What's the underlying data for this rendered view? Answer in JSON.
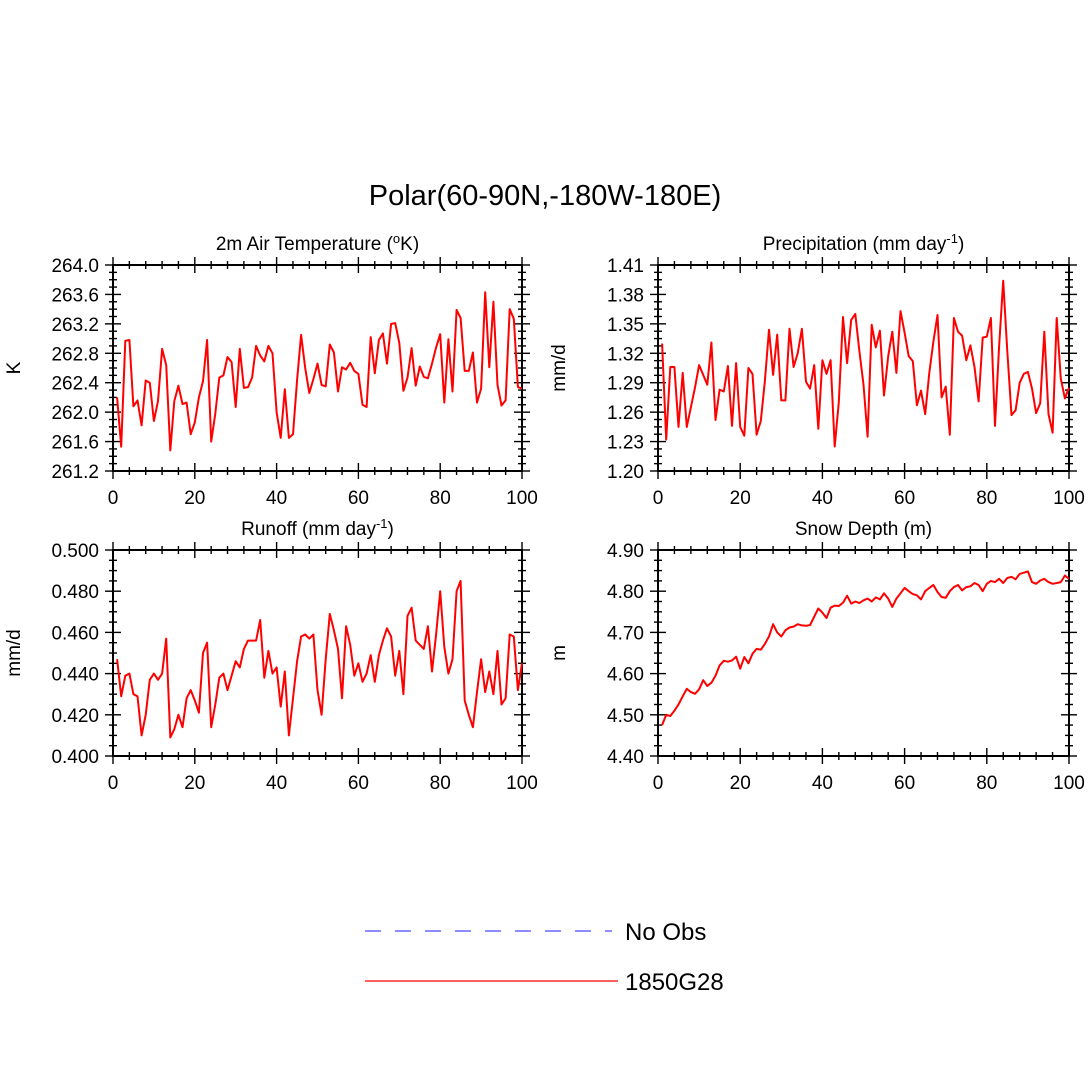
{
  "title": "Polar(60-90N,-180W-180E)",
  "legend": {
    "entries": [
      {
        "label": "No Obs",
        "color": "#6666ff",
        "style": "dashed"
      },
      {
        "label": "1850G28",
        "color": "#ff0000",
        "style": "solid"
      }
    ]
  },
  "colors": {
    "series": "#ff0000",
    "obs": "#6666ff",
    "axis": "#000000"
  },
  "chart_data": [
    {
      "type": "line",
      "title": "2m Air Temperature (",
      "title_sup": "o",
      "title_tail": "K)",
      "xlabel": "",
      "ylabel": "K",
      "xlim": [
        0,
        100
      ],
      "ylim": [
        261.2,
        264.0
      ],
      "xticks": [
        0,
        20,
        40,
        60,
        80,
        100
      ],
      "xtick_labels": [
        "0",
        "20",
        "40",
        "60",
        "80",
        "100"
      ],
      "yticks": [
        261.2,
        261.6,
        262.0,
        262.4,
        262.8,
        263.2,
        263.6,
        264.0
      ],
      "ytick_labels": [
        "261.2",
        "261.6",
        "262.0",
        "262.4",
        "262.8",
        "263.2",
        "263.6",
        "264.0"
      ],
      "series": [
        {
          "name": "1850G28",
          "x_start": 1,
          "values": [
            262.2,
            261.53,
            262.97,
            262.98,
            262.08,
            262.16,
            261.82,
            262.43,
            262.4,
            261.88,
            262.15,
            262.86,
            262.64,
            261.48,
            262.15,
            262.36,
            262.11,
            262.13,
            261.7,
            261.86,
            262.2,
            262.42,
            262.98,
            261.6,
            261.98,
            262.47,
            262.5,
            262.75,
            262.68,
            262.07,
            262.86,
            262.33,
            262.34,
            262.47,
            262.9,
            262.77,
            262.69,
            262.9,
            262.8,
            262.0,
            261.65,
            262.31,
            261.65,
            261.7,
            262.44,
            263.05,
            262.6,
            262.26,
            262.45,
            262.66,
            262.37,
            262.35,
            262.92,
            262.81,
            262.28,
            262.61,
            262.58,
            262.67,
            262.56,
            262.52,
            262.1,
            262.07,
            263.02,
            262.53,
            262.98,
            263.07,
            262.66,
            263.2,
            263.21,
            262.94,
            262.29,
            262.47,
            262.87,
            262.36,
            262.62,
            262.48,
            262.46,
            262.66,
            262.88,
            263.06,
            262.13,
            262.99,
            262.28,
            263.39,
            263.28,
            262.56,
            262.56,
            262.81,
            262.13,
            262.32,
            263.63,
            262.61,
            263.5,
            262.37,
            262.09,
            262.16,
            263.4,
            263.27,
            262.34,
            262.32
          ]
        }
      ]
    },
    {
      "type": "line",
      "title": "Precipitation (mm day",
      "title_sup": "-1",
      "title_tail": ")",
      "xlabel": "",
      "ylabel": "mm/d",
      "xlim": [
        0,
        100
      ],
      "ylim": [
        1.2,
        1.41
      ],
      "xticks": [
        0,
        20,
        40,
        60,
        80,
        100
      ],
      "xtick_labels": [
        "0",
        "20",
        "40",
        "60",
        "80",
        "100"
      ],
      "yticks": [
        1.2,
        1.23,
        1.26,
        1.29,
        1.32,
        1.35,
        1.38,
        1.41
      ],
      "ytick_labels": [
        "1.20",
        "1.23",
        "1.26",
        "1.29",
        "1.32",
        "1.35",
        "1.38",
        "1.41"
      ],
      "series": [
        {
          "name": "1850G28",
          "x_start": 1,
          "values": [
            1.33,
            1.232,
            1.306,
            1.306,
            1.245,
            1.3,
            1.245,
            1.265,
            1.285,
            1.308,
            1.298,
            1.288,
            1.331,
            1.252,
            1.283,
            1.281,
            1.307,
            1.246,
            1.31,
            1.245,
            1.236,
            1.305,
            1.299,
            1.237,
            1.251,
            1.292,
            1.344,
            1.298,
            1.339,
            1.272,
            1.272,
            1.345,
            1.306,
            1.32,
            1.345,
            1.291,
            1.284,
            1.308,
            1.243,
            1.313,
            1.299,
            1.313,
            1.225,
            1.27,
            1.357,
            1.31,
            1.354,
            1.36,
            1.322,
            1.288,
            1.235,
            1.349,
            1.326,
            1.343,
            1.277,
            1.317,
            1.342,
            1.3,
            1.363,
            1.341,
            1.317,
            1.312,
            1.267,
            1.282,
            1.258,
            1.3,
            1.332,
            1.359,
            1.275,
            1.286,
            1.237,
            1.356,
            1.342,
            1.338,
            1.313,
            1.328,
            1.306,
            1.271,
            1.336,
            1.337,
            1.356,
            1.246,
            1.327,
            1.394,
            1.322,
            1.257,
            1.262,
            1.29,
            1.299,
            1.301,
            1.284,
            1.259,
            1.269,
            1.342,
            1.258,
            1.239,
            1.356,
            1.294,
            1.274,
            1.285
          ]
        }
      ]
    },
    {
      "type": "line",
      "title": "Runoff (mm day",
      "title_sup": "-1",
      "title_tail": ")",
      "xlabel": "",
      "ylabel": "mm/d",
      "xlim": [
        0,
        100
      ],
      "ylim": [
        0.4,
        0.5
      ],
      "xticks": [
        0,
        20,
        40,
        60,
        80,
        100
      ],
      "xtick_labels": [
        "0",
        "20",
        "40",
        "60",
        "80",
        "100"
      ],
      "yticks": [
        0.4,
        0.42,
        0.44,
        0.46,
        0.48,
        0.5
      ],
      "ytick_labels": [
        "0.400",
        "0.420",
        "0.440",
        "0.460",
        "0.480",
        "0.500"
      ],
      "series": [
        {
          "name": "1850G28",
          "x_start": 1,
          "values": [
            0.447,
            0.429,
            0.439,
            0.44,
            0.43,
            0.429,
            0.41,
            0.42,
            0.437,
            0.44,
            0.437,
            0.44,
            0.457,
            0.409,
            0.413,
            0.42,
            0.414,
            0.428,
            0.432,
            0.427,
            0.421,
            0.45,
            0.455,
            0.414,
            0.425,
            0.438,
            0.44,
            0.432,
            0.439,
            0.446,
            0.443,
            0.452,
            0.456,
            0.456,
            0.456,
            0.466,
            0.438,
            0.451,
            0.44,
            0.443,
            0.424,
            0.441,
            0.41,
            0.428,
            0.446,
            0.458,
            0.459,
            0.457,
            0.459,
            0.432,
            0.42,
            0.447,
            0.469,
            0.461,
            0.452,
            0.428,
            0.463,
            0.454,
            0.439,
            0.445,
            0.436,
            0.44,
            0.449,
            0.436,
            0.449,
            0.456,
            0.462,
            0.458,
            0.439,
            0.451,
            0.43,
            0.468,
            0.472,
            0.456,
            0.454,
            0.452,
            0.463,
            0.441,
            0.459,
            0.48,
            0.453,
            0.44,
            0.447,
            0.48,
            0.485,
            0.427,
            0.42,
            0.414,
            0.431,
            0.447,
            0.431,
            0.441,
            0.43,
            0.451,
            0.425,
            0.428,
            0.459,
            0.458,
            0.432,
            0.445
          ]
        }
      ]
    },
    {
      "type": "line",
      "title": "Snow Depth (m)",
      "title_sup": "",
      "title_tail": "",
      "xlabel": "",
      "ylabel": "m",
      "xlim": [
        0,
        100
      ],
      "ylim": [
        4.4,
        4.9
      ],
      "xticks": [
        0,
        20,
        40,
        60,
        80,
        100
      ],
      "xtick_labels": [
        "0",
        "20",
        "40",
        "60",
        "80",
        "100"
      ],
      "yticks": [
        4.4,
        4.5,
        4.6,
        4.7,
        4.8,
        4.9
      ],
      "ytick_labels": [
        "4.40",
        "4.50",
        "4.60",
        "4.70",
        "4.80",
        "4.90"
      ],
      "series": [
        {
          "name": "1850G28",
          "x_start": 1,
          "values": [
            4.475,
            4.5,
            4.497,
            4.51,
            4.525,
            4.545,
            4.563,
            4.555,
            4.551,
            4.562,
            4.584,
            4.57,
            4.578,
            4.595,
            4.62,
            4.631,
            4.629,
            4.632,
            4.641,
            4.612,
            4.64,
            4.625,
            4.648,
            4.66,
            4.658,
            4.672,
            4.69,
            4.72,
            4.7,
            4.69,
            4.705,
            4.712,
            4.714,
            4.72,
            4.717,
            4.716,
            4.718,
            4.738,
            4.758,
            4.748,
            4.735,
            4.76,
            4.765,
            4.764,
            4.772,
            4.789,
            4.77,
            4.775,
            4.771,
            4.778,
            4.782,
            4.775,
            4.785,
            4.78,
            4.795,
            4.782,
            4.762,
            4.782,
            4.795,
            4.808,
            4.8,
            4.793,
            4.79,
            4.78,
            4.8,
            4.808,
            4.815,
            4.798,
            4.786,
            4.784,
            4.8,
            4.81,
            4.815,
            4.802,
            4.81,
            4.812,
            4.82,
            4.815,
            4.8,
            4.818,
            4.825,
            4.822,
            4.83,
            4.82,
            4.832,
            4.835,
            4.829,
            4.842,
            4.845,
            4.848,
            4.822,
            4.818,
            4.826,
            4.83,
            4.822,
            4.818,
            4.82,
            4.822,
            4.838,
            4.83
          ]
        }
      ]
    }
  ]
}
